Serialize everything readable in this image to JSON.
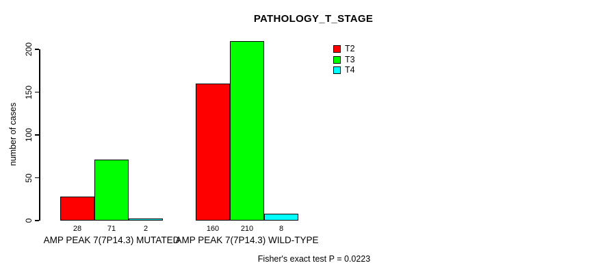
{
  "title": "PATHOLOGY_T_STAGE",
  "footer": "Fisher's exact test P = 0.0223",
  "chart_data": {
    "type": "bar",
    "title": "PATHOLOGY_T_STAGE",
    "ylabel": "number of cases",
    "xlabel": "",
    "categories": [
      "AMP PEAK 7(7P14.3) MUTATED",
      "AMP PEAK 7(7P14.3) WILD-TYPE"
    ],
    "series": [
      {
        "name": "T2",
        "color": "#ff0000",
        "values": [
          28,
          160
        ]
      },
      {
        "name": "T3",
        "color": "#00ff00",
        "values": [
          71,
          210
        ]
      },
      {
        "name": "T4",
        "color": "#00ffff",
        "values": [
          2,
          8
        ]
      }
    ],
    "bar_value_labels": [
      [
        "28",
        "71",
        "2"
      ],
      [
        "160",
        "210",
        "8"
      ]
    ],
    "yticks": [
      0,
      50,
      100,
      150,
      200
    ],
    "ylim": [
      0,
      210
    ],
    "grid": false,
    "legend_position": "upper-right",
    "annotation": "Fisher's exact test P = 0.0223"
  }
}
